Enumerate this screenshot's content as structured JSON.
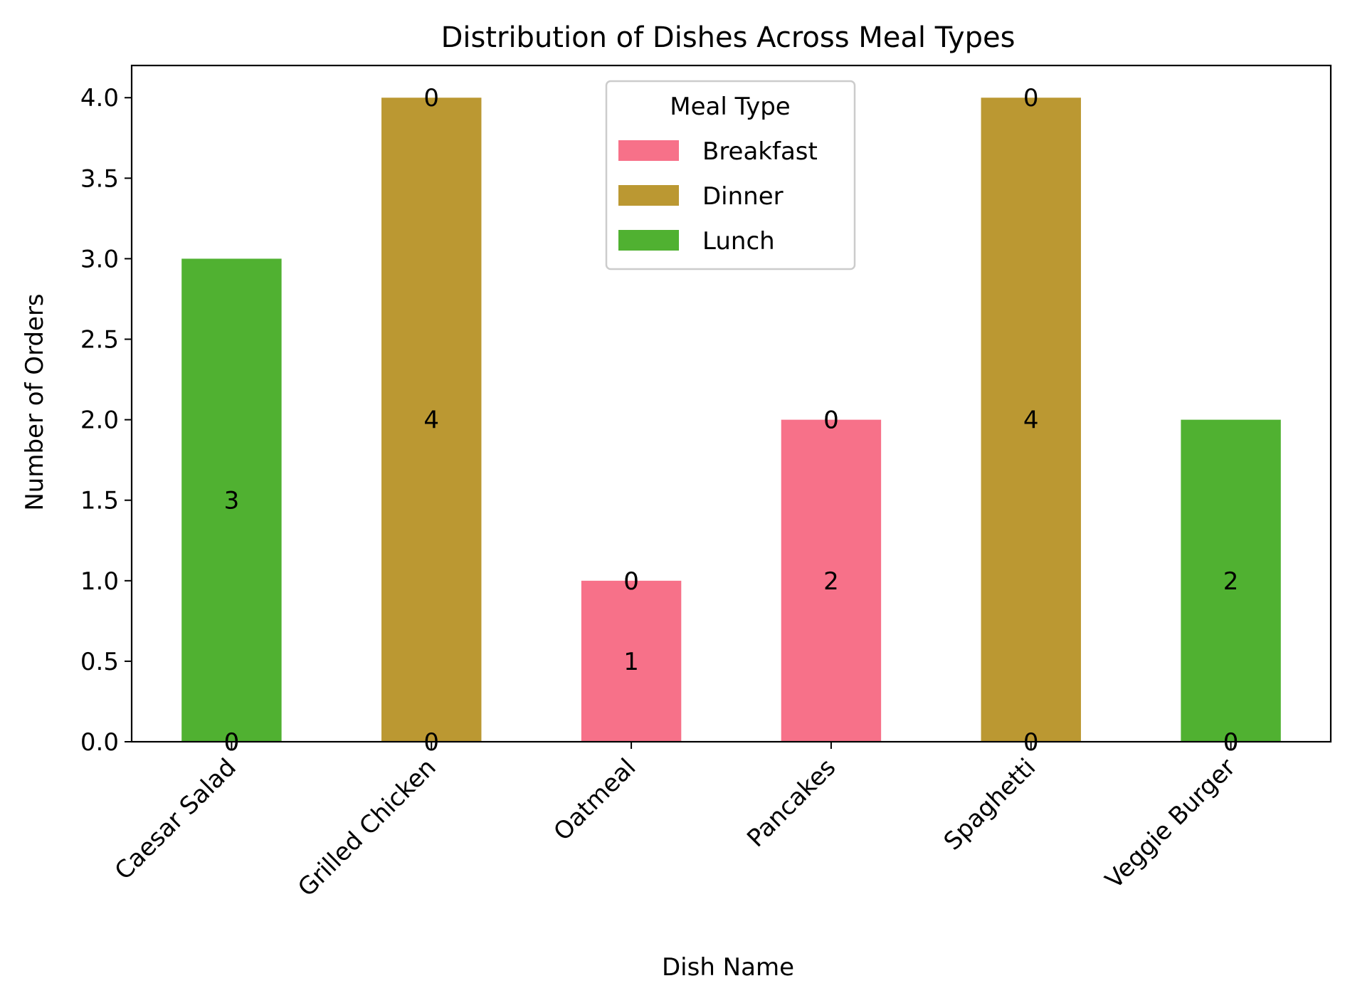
{
  "chart_data": {
    "type": "bar",
    "stacked": true,
    "title": "Distribution of Dishes Across Meal Types",
    "xlabel": "Dish Name",
    "ylabel": "Number of Orders",
    "ylim": [
      0,
      4.2
    ],
    "yticks": [
      "0.0",
      "0.5",
      "1.0",
      "1.5",
      "2.0",
      "2.5",
      "3.0",
      "3.5",
      "4.0"
    ],
    "categories": [
      "Caesar Salad",
      "Grilled Chicken",
      "Oatmeal",
      "Pancakes",
      "Spaghetti",
      "Veggie Burger"
    ],
    "grid": false,
    "legend": {
      "title": "Meal Type",
      "position": "top-center"
    },
    "series": [
      {
        "name": "Breakfast",
        "color": "#f77189",
        "values": [
          0,
          0,
          1,
          2,
          0,
          0
        ]
      },
      {
        "name": "Dinner",
        "color": "#bb9832",
        "values": [
          0,
          4,
          0,
          0,
          4,
          0
        ]
      },
      {
        "name": "Lunch",
        "color": "#50b131",
        "values": [
          3,
          0,
          0,
          0,
          0,
          2
        ]
      }
    ]
  }
}
